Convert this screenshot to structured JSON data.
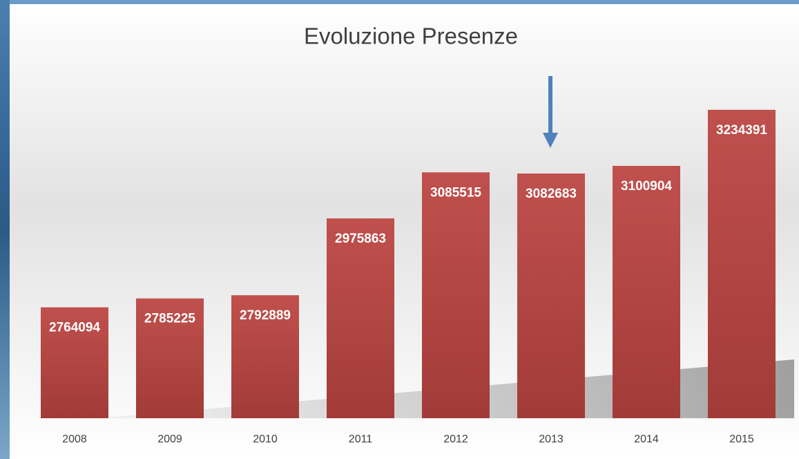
{
  "chart_data": {
    "type": "bar",
    "title": "Evoluzione Presenze",
    "categories": [
      "2008",
      "2009",
      "2010",
      "2011",
      "2012",
      "2013",
      "2014",
      "2015"
    ],
    "values": [
      2764094,
      2785225,
      2792889,
      2975863,
      3085515,
      3082683,
      3100904,
      3234391
    ],
    "color": "#b94444",
    "ylim": [
      2500000,
      3300000
    ]
  }
}
